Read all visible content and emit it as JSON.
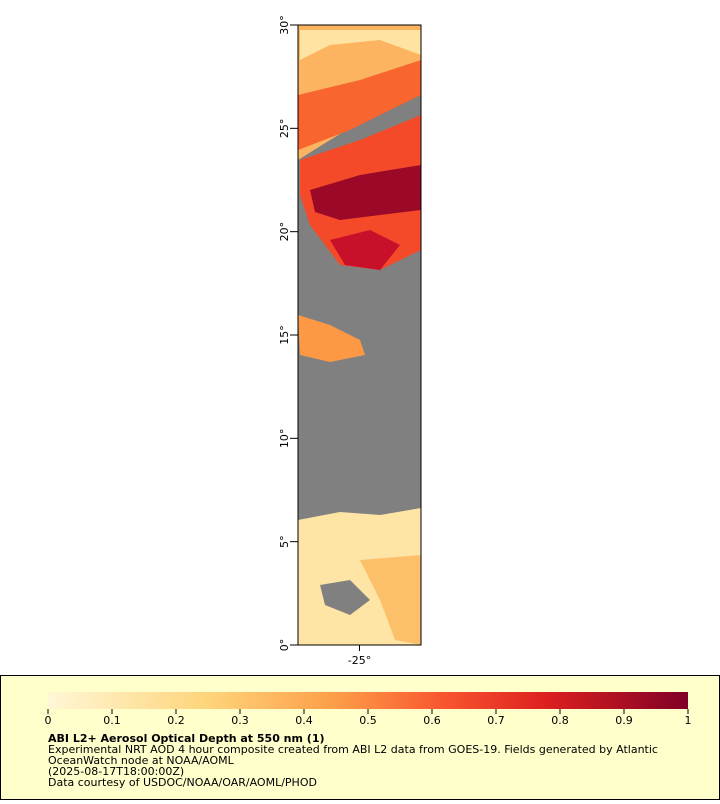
{
  "map": {
    "ylim": [
      0,
      30
    ],
    "yticks": [
      {
        "value": 0,
        "label": "0°"
      },
      {
        "value": 5,
        "label": "5°"
      },
      {
        "value": 10,
        "label": "10°"
      },
      {
        "value": 15,
        "label": "15°"
      },
      {
        "value": 20,
        "label": "20°"
      },
      {
        "value": 25,
        "label": "25°"
      },
      {
        "value": 30,
        "label": "30°"
      }
    ],
    "xlim": [
      -28,
      -22
    ],
    "xticks": [
      {
        "value": -25,
        "label": "-25°"
      }
    ]
  },
  "legend": {
    "colorbar_lim": [
      0,
      1
    ],
    "colorbar_ticks": [
      0,
      0.1,
      0.2,
      0.3,
      0.4,
      0.5,
      0.6,
      0.7,
      0.8,
      0.9,
      1
    ],
    "title": "ABI L2+ Aerosol Optical Depth at 550 nm (1)",
    "lines": [
      "Experimental NRT AOD 4 hour composite created from ABI L2 data from GOES-19. Fields generated by Atlantic",
      "OceanWatch node at NOAA/AOML",
      "(2025-08-17T18:00:00Z)",
      "Data courtesy of USDOC/NOAA/OAR/AOML/PHOD"
    ]
  }
}
